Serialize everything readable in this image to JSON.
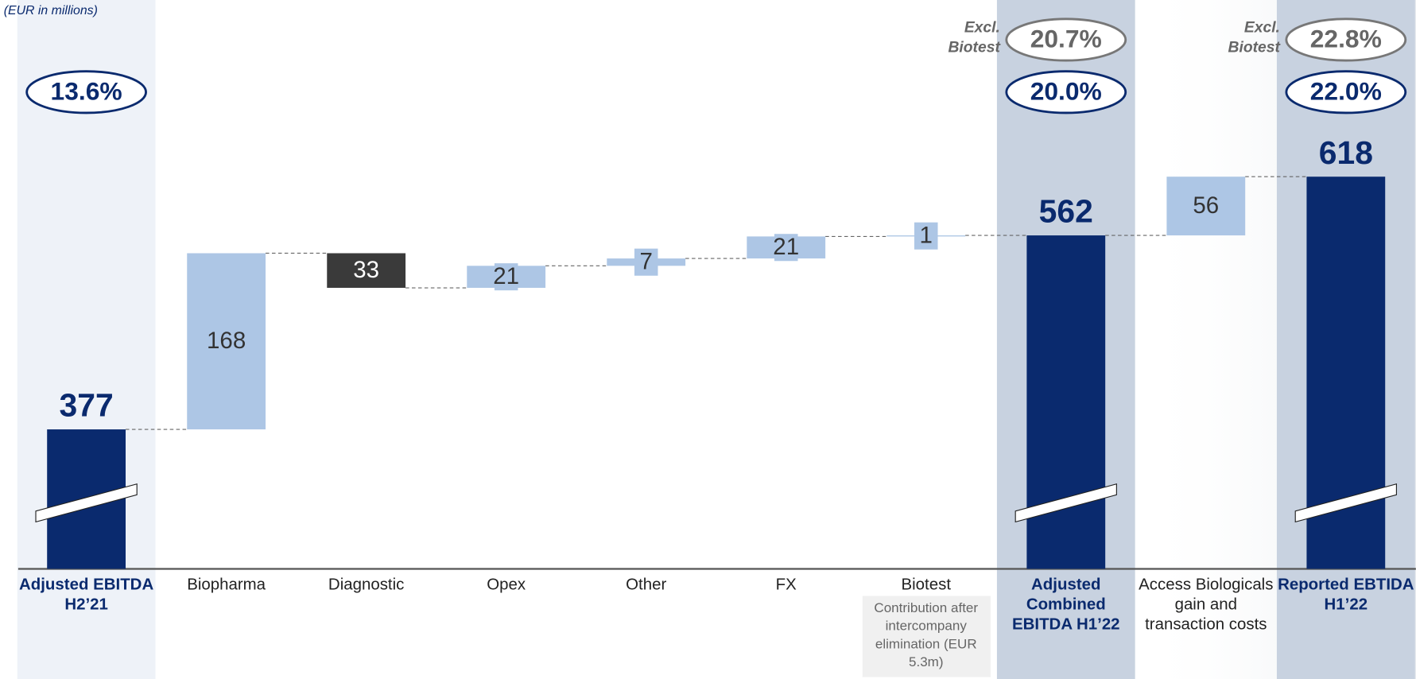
{
  "chart_data": {
    "type": "waterfall",
    "unit_label": "(EUR in millions)",
    "categories": [
      "Adjusted EBITDA H2’21",
      "Biopharma",
      "Diagnostic",
      "Opex",
      "Other",
      "FX",
      "Biotest",
      "Adjusted Combined EBITDA H1’22",
      "Access Biologicals gain and transaction costs",
      "Reported EBTIDA H1’22"
    ],
    "values": [
      377,
      168,
      -33,
      21,
      7,
      21,
      1,
      562,
      56,
      618
    ],
    "value_labels": [
      "377",
      "168",
      "33",
      "21",
      "7",
      "21",
      "1",
      "562",
      "56",
      "618"
    ],
    "measure": [
      "total",
      "relative",
      "relative",
      "relative",
      "relative",
      "relative",
      "relative",
      "total",
      "relative",
      "total"
    ],
    "colors": {
      "total": "#0a2a6e",
      "increase": "#adc6e5",
      "decrease": "#3a3a3a"
    },
    "column_shading": [
      "#eef2f8",
      null,
      null,
      null,
      null,
      null,
      null,
      "#c8d2e0",
      null,
      "#c8d2e0"
    ],
    "margins": [
      "13.6%",
      null,
      null,
      null,
      null,
      null,
      null,
      "20.0%",
      null,
      "22.0%"
    ],
    "margins_excl_biotest": [
      null,
      null,
      null,
      null,
      null,
      null,
      null,
      "20.7%",
      null,
      "22.8%"
    ],
    "excl_label_lines": [
      "Excl.",
      "Biotest"
    ],
    "notes": [
      null,
      null,
      null,
      null,
      null,
      null,
      "Contribution after intercompany elimination (EUR 5.3m)",
      null,
      null,
      null
    ],
    "ylim": [
      244,
      786.5
    ]
  }
}
